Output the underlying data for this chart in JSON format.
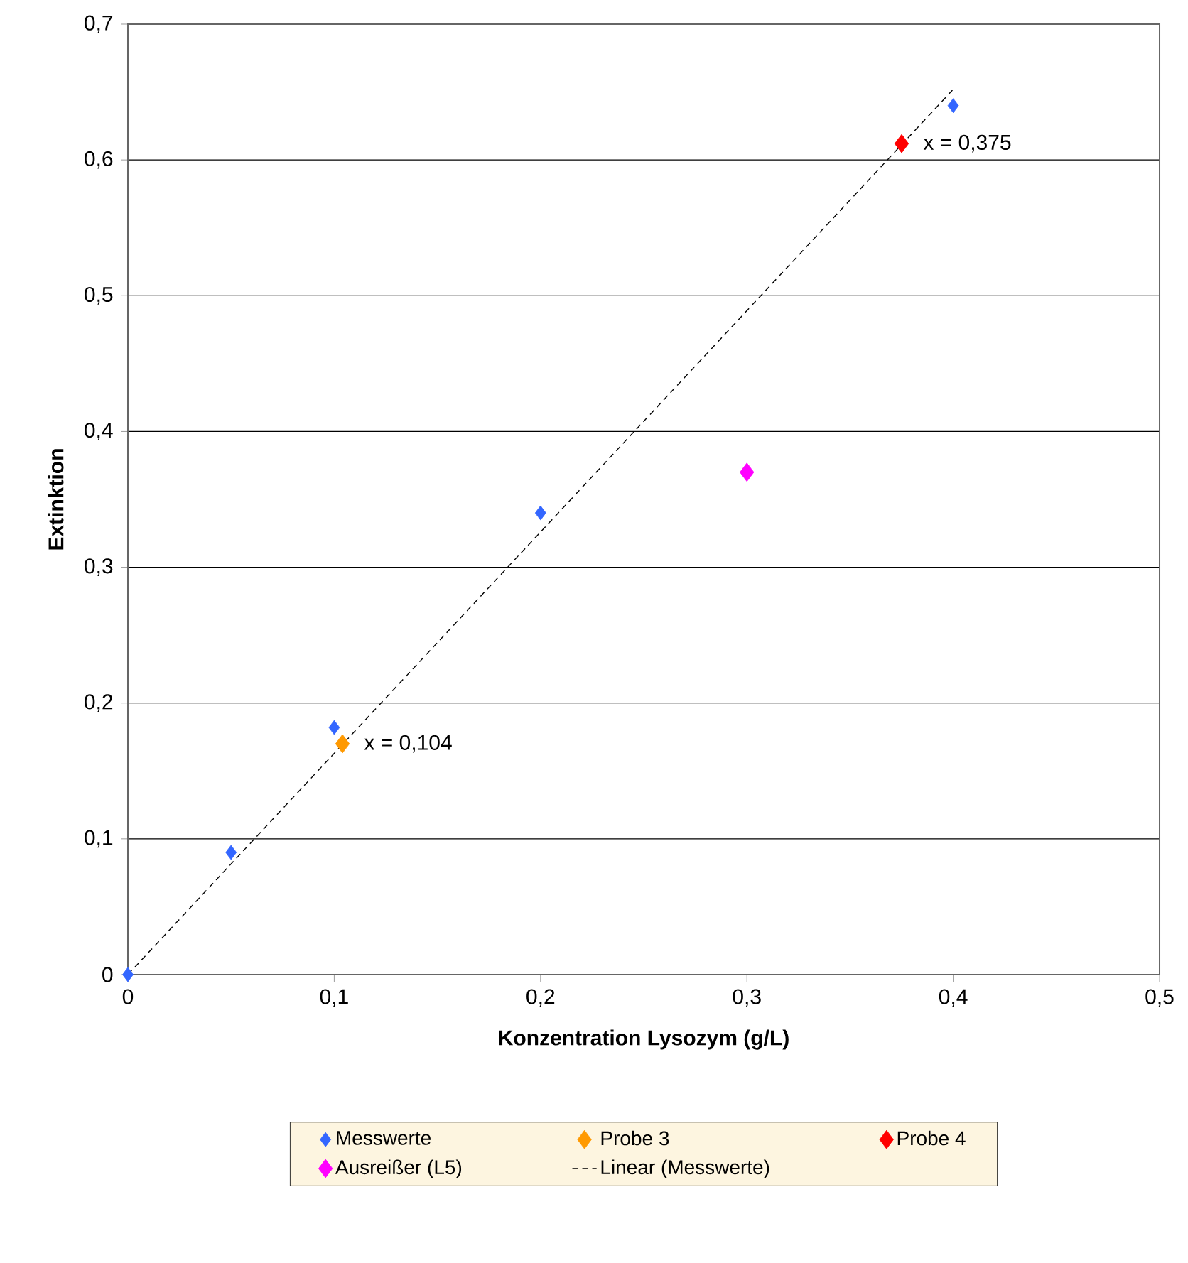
{
  "chart_data": {
    "type": "scatter",
    "xlabel": "Konzentration Lysozym (g/L)",
    "ylabel": "Extinktion",
    "xlim": [
      0,
      0.5
    ],
    "ylim": [
      0,
      0.7
    ],
    "xticks": [
      0,
      {
        "value": 0.1,
        "label": "0,1"
      },
      {
        "value": 0.2,
        "label": "0,2"
      },
      {
        "value": 0.3,
        "label": "0,3"
      },
      {
        "value": 0.4,
        "label": "0,4"
      },
      {
        "value": 0.5,
        "label": "0,5"
      }
    ],
    "yticks": [
      0,
      {
        "value": 0.1,
        "label": "0,1"
      },
      {
        "value": 0.2,
        "label": "0,2"
      },
      {
        "value": 0.3,
        "label": "0,3"
      },
      {
        "value": 0.4,
        "label": "0,4"
      },
      {
        "value": 0.5,
        "label": "0,5"
      },
      {
        "value": 0.6,
        "label": "0,6"
      },
      {
        "value": 0.7,
        "label": "0,7"
      }
    ],
    "grid": "y",
    "legend": "bottom",
    "marker": "diamond",
    "series": [
      {
        "name": "Messwerte",
        "color": "#3366ff",
        "x": [
          0,
          0.05,
          0.1,
          0.2,
          0.4
        ],
        "values": [
          0,
          0.09,
          0.182,
          0.34,
          0.64
        ]
      },
      {
        "name": "Probe 3",
        "color": "#ff9900",
        "x": [
          0.104
        ],
        "values": [
          0.17
        ]
      },
      {
        "name": "Probe 4",
        "color": "#ff0000",
        "x": [
          0.375
        ],
        "values": [
          0.612
        ]
      },
      {
        "name": "Ausreißer (L5)",
        "color": "#ff00ff",
        "x": [
          0.3
        ],
        "values": [
          0.37
        ]
      },
      {
        "name": "Linear (Messwerte)",
        "type": "line",
        "color": "#000000",
        "line_style": "dashed",
        "marker": "none",
        "x": [
          0,
          0.4
        ],
        "values": [
          0,
          0.652
        ]
      }
    ],
    "annotations": [
      {
        "text": "x = 0,375",
        "x": 0.375,
        "y": 0.612
      },
      {
        "text": "x = 0,104",
        "x": 0.104,
        "y": 0.17
      }
    ]
  }
}
